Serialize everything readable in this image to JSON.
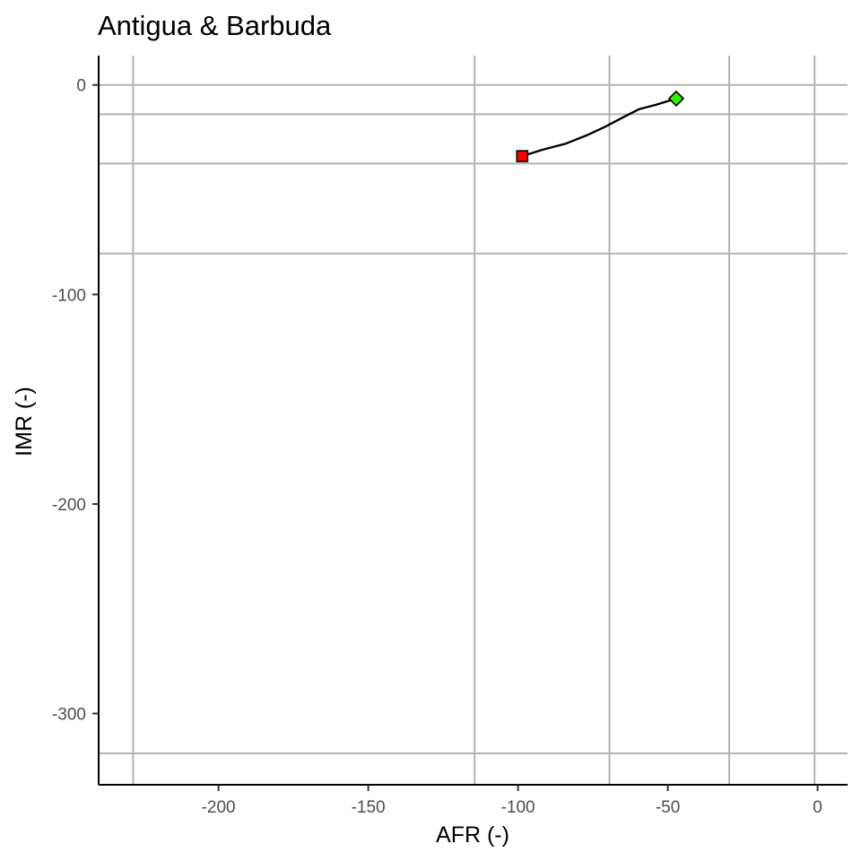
{
  "chart_data": {
    "type": "line",
    "title": "Antigua & Barbuda",
    "xlabel": "AFR (-)",
    "ylabel": "IMR (-)",
    "xlim": [
      -240,
      10
    ],
    "ylim": [
      -334,
      14
    ],
    "x_ticks": [
      -200,
      -150,
      -100,
      -50,
      0
    ],
    "y_ticks": [
      0,
      -100,
      -200,
      -300
    ],
    "x_tick_labels": [
      "-200",
      "-150",
      "-100",
      "-50",
      "0"
    ],
    "y_tick_labels": [
      "0",
      "-100",
      "-200",
      "-300"
    ],
    "reference_lines": {
      "vertical": [
        -228.5,
        -114.5,
        -69.5,
        -29.5,
        -1
      ],
      "horizontal": [
        -14,
        -37.5,
        -80.5,
        -319
      ]
    },
    "series": [
      {
        "x": [
          -98.6,
          -92,
          -84,
          -77,
          -71,
          -65,
          -59.5,
          -54,
          -47.2
        ],
        "y": [
          -34,
          -31,
          -28,
          -24,
          -20,
          -15.5,
          -11.5,
          -9.5,
          -6.5
        ]
      }
    ],
    "start_marker": {
      "x": -98.6,
      "y": -34,
      "shape": "square",
      "color": "#ff0000"
    },
    "end_marker": {
      "x": -47.2,
      "y": -6.5,
      "shape": "diamond",
      "color": "#33ee00"
    },
    "grid": true,
    "legend": "none",
    "colors": {
      "line": "#000000",
      "grid": "#b3b3b3",
      "axis": "#000000",
      "tick_text": "#4d4d4d"
    }
  }
}
